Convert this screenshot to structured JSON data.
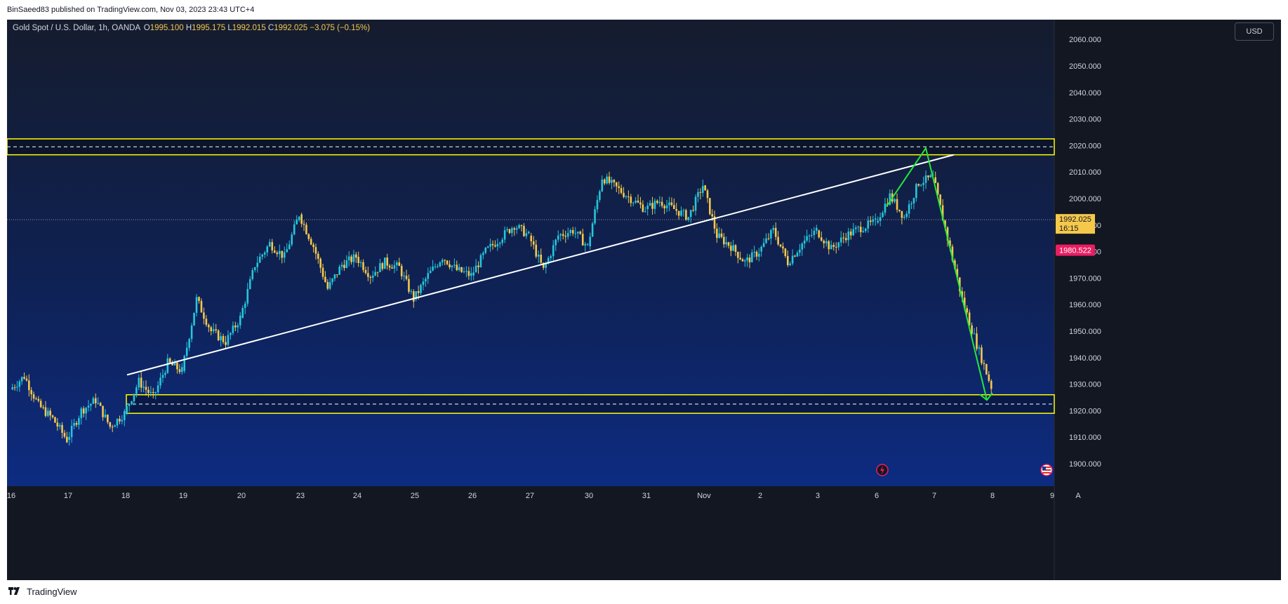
{
  "publisher_line": "BinSaeed83 published on TradingView.com, Nov 03, 2023 23:43 UTC+4",
  "legend": {
    "symbol": "Gold Spot / U.S. Dollar, 1h, OANDA",
    "o_label": "O",
    "o": "1995.100",
    "h_label": "H",
    "h": "1995.175",
    "l_label": "L",
    "l": "1992.015",
    "c_label": "C",
    "c": "1992.025",
    "change": "−3.075 (−0.15%)"
  },
  "currency_button": "USD",
  "footer_brand": "TradingView",
  "colors": {
    "up": "#26c6da",
    "down": "#f5c84c",
    "zone": "#ffff00",
    "trend": "#ffffff",
    "arrow": "#22e83a",
    "price_badge": "#f5c84c",
    "alert_badge": "#e91e63"
  },
  "chart_data": {
    "type": "candlestick",
    "y_ticks": [
      "2060.000",
      "2050.000",
      "2040.000",
      "2030.000",
      "2020.000",
      "2010.000",
      "2000.000",
      "1990.000",
      "1980.000",
      "1970.000",
      "1960.000",
      "1950.000",
      "1940.000",
      "1930.000",
      "1920.000",
      "1910.000",
      "1900.000"
    ],
    "ylim": [
      1896,
      2066
    ],
    "x_ticks": [
      "16",
      "17",
      "18",
      "19",
      "20",
      "23",
      "24",
      "25",
      "26",
      "27",
      "30",
      "31",
      "Nov",
      "2",
      "3",
      "6",
      "7",
      "8",
      "9"
    ],
    "current_price": "1992.025",
    "countdown": "16:15",
    "alert_price": "1980.522",
    "series": [
      {
        "day": "16",
        "path": [
          1928,
          1933,
          1922,
          1917,
          1909
        ]
      },
      {
        "day": "17",
        "path": [
          1909,
          1920,
          1924,
          1914,
          1919
        ]
      },
      {
        "day": "18",
        "path": [
          1919,
          1931,
          1925,
          1938,
          1935
        ]
      },
      {
        "day": "19",
        "path": [
          1935,
          1962,
          1950,
          1946,
          1955
        ]
      },
      {
        "day": "20",
        "path": [
          1955,
          1975,
          1983,
          1978,
          1994
        ]
      },
      {
        "day": "23",
        "path": [
          1994,
          1982,
          1966,
          1975,
          1978
        ]
      },
      {
        "day": "24",
        "path": [
          1978,
          1971,
          1976,
          1974,
          1962
        ]
      },
      {
        "day": "25",
        "path": [
          1962,
          1971,
          1978,
          1973,
          1971
        ]
      },
      {
        "day": "26",
        "path": [
          1971,
          1980,
          1985,
          1990,
          1986
        ]
      },
      {
        "day": "27",
        "path": [
          1986,
          1973,
          1986,
          1988,
          1982
        ]
      },
      {
        "day": "30",
        "path": [
          1982,
          2008,
          2004,
          2000,
          1996
        ]
      },
      {
        "day": "31",
        "path": [
          1996,
          1999,
          1996,
          1993,
          2005
        ]
      },
      {
        "day": "Nov",
        "path": [
          2005,
          1986,
          1982,
          1976,
          1980
        ]
      },
      {
        "day": "2",
        "path": [
          1980,
          1988,
          1976,
          1983,
          1988
        ]
      },
      {
        "day": "3",
        "path": [
          1988,
          1981,
          1986,
          1989,
          1991
        ]
      },
      {
        "day": "6",
        "path": [
          1991,
          2001,
          1993,
          2006,
          2008
        ]
      },
      {
        "day": "7",
        "path": [
          2008,
          1985,
          1962,
          1945,
          1929
        ]
      }
    ],
    "zones": [
      {
        "top": 2022.5,
        "bottom": 2016.5,
        "mid": 2019.5
      },
      {
        "top": 1926,
        "bottom": 1919,
        "mid": 1922.5
      }
    ],
    "trendline": {
      "from": {
        "day": "18",
        "price": 1933.5
      },
      "to": {
        "day": "7",
        "price": 2016.5
      }
    },
    "arrow_path": [
      {
        "day": "6",
        "price": 1997
      },
      {
        "day": "6",
        "price": 2019
      },
      {
        "day": "7",
        "price": 1924
      }
    ]
  }
}
